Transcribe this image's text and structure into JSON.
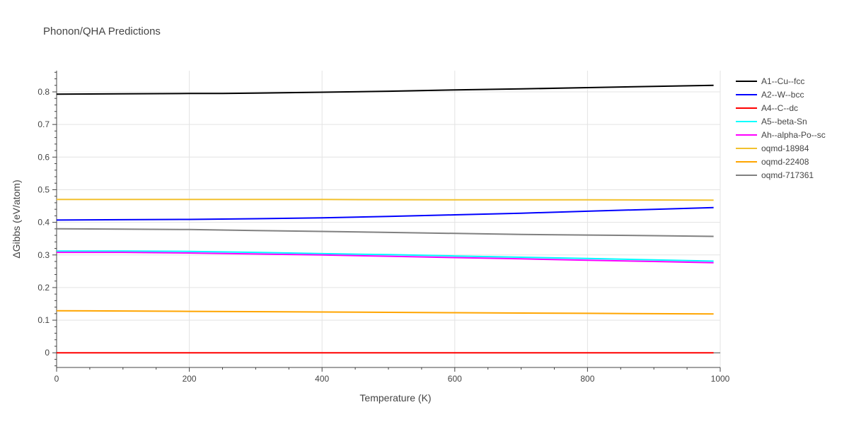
{
  "chart_data": {
    "type": "line",
    "title": "Phonon/QHA Predictions",
    "xlabel": "Temperature (K)",
    "ylabel": "ΔGibbs (eV/atom)",
    "xlim": [
      0,
      1000
    ],
    "ylim": [
      -0.045,
      0.865
    ],
    "xticks": [
      0,
      200,
      400,
      600,
      800,
      1000
    ],
    "xtick_labels": [
      "0",
      "200",
      "400",
      "600",
      "800",
      "1000"
    ],
    "yticks": [
      0,
      0.1,
      0.2,
      0.3,
      0.4,
      0.5,
      0.6,
      0.7,
      0.8
    ],
    "ytick_labels": [
      "0",
      "0.1",
      "0.2",
      "0.3",
      "0.4",
      "0.5",
      "0.6",
      "0.7",
      "0.8"
    ],
    "grid": true,
    "legend_position": "right",
    "series": [
      {
        "name": "A1--Cu--fcc",
        "color": "#000000",
        "x": [
          0,
          100,
          200,
          250,
          300,
          400,
          500,
          600,
          700,
          800,
          900,
          990
        ],
        "y": [
          0.793,
          0.794,
          0.795,
          0.795,
          0.796,
          0.799,
          0.802,
          0.806,
          0.809,
          0.813,
          0.817,
          0.82
        ]
      },
      {
        "name": "A2--W--bcc",
        "color": "#0000ff",
        "x": [
          0,
          100,
          200,
          300,
          400,
          500,
          600,
          700,
          800,
          900,
          990
        ],
        "y": [
          0.407,
          0.408,
          0.409,
          0.411,
          0.414,
          0.418,
          0.423,
          0.428,
          0.434,
          0.44,
          0.445
        ]
      },
      {
        "name": "A4--C--dc",
        "color": "#ff0000",
        "x": [
          0,
          200,
          400,
          600,
          800,
          990
        ],
        "y": [
          0.0,
          0.0,
          0.0,
          0.0,
          0.0,
          0.0
        ]
      },
      {
        "name": "A5--beta-Sn",
        "color": "#00ffff",
        "x": [
          0,
          100,
          200,
          300,
          400,
          500,
          600,
          700,
          800,
          900,
          990
        ],
        "y": [
          0.312,
          0.312,
          0.311,
          0.308,
          0.304,
          0.301,
          0.297,
          0.293,
          0.289,
          0.285,
          0.281
        ]
      },
      {
        "name": "Ah--alpha-Po--sc",
        "color": "#ff00ff",
        "x": [
          0,
          100,
          200,
          300,
          400,
          500,
          600,
          700,
          800,
          900,
          990
        ],
        "y": [
          0.308,
          0.308,
          0.306,
          0.303,
          0.3,
          0.296,
          0.292,
          0.288,
          0.284,
          0.28,
          0.276
        ]
      },
      {
        "name": "oqmd-18984",
        "color": "#f2c12e",
        "x": [
          0,
          200,
          400,
          600,
          800,
          990
        ],
        "y": [
          0.47,
          0.47,
          0.47,
          0.469,
          0.469,
          0.468
        ]
      },
      {
        "name": "oqmd-22408",
        "color": "#ffa500",
        "x": [
          0,
          200,
          400,
          600,
          800,
          990
        ],
        "y": [
          0.129,
          0.127,
          0.125,
          0.123,
          0.121,
          0.119
        ]
      },
      {
        "name": "oqmd-717361",
        "color": "#808080",
        "x": [
          0,
          100,
          200,
          300,
          400,
          500,
          600,
          700,
          800,
          900,
          990
        ],
        "y": [
          0.38,
          0.379,
          0.378,
          0.375,
          0.372,
          0.369,
          0.366,
          0.363,
          0.361,
          0.359,
          0.357
        ]
      }
    ]
  }
}
